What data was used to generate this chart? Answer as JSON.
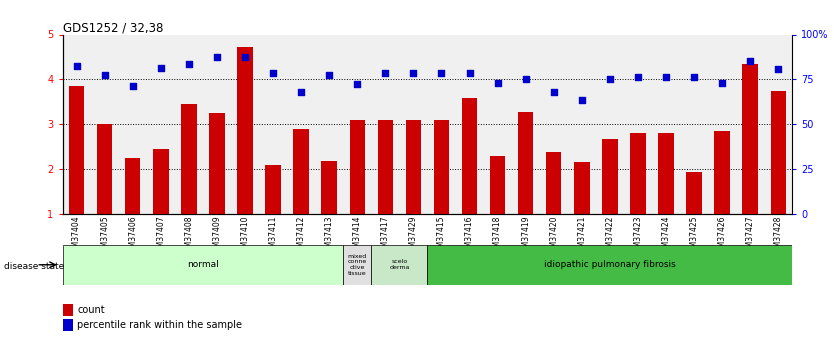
{
  "title": "GDS1252 / 32,38",
  "categories": [
    "GSM37404",
    "GSM37405",
    "GSM37406",
    "GSM37407",
    "GSM37408",
    "GSM37409",
    "GSM37410",
    "GSM37411",
    "GSM37412",
    "GSM37413",
    "GSM37414",
    "GSM37417",
    "GSM37429",
    "GSM37415",
    "GSM37416",
    "GSM37418",
    "GSM37419",
    "GSM37420",
    "GSM37421",
    "GSM37422",
    "GSM37423",
    "GSM37424",
    "GSM37425",
    "GSM37426",
    "GSM37427",
    "GSM37428"
  ],
  "bar_values": [
    3.85,
    3.0,
    2.25,
    2.45,
    3.45,
    3.25,
    4.72,
    2.08,
    2.9,
    2.18,
    3.1,
    3.1,
    3.1,
    3.1,
    3.58,
    2.28,
    3.27,
    2.38,
    2.15,
    2.67,
    2.8,
    2.8,
    1.93,
    2.85,
    4.35,
    3.75
  ],
  "scatter_values": [
    4.3,
    4.1,
    3.85,
    4.25,
    4.35,
    4.5,
    4.5,
    4.15,
    3.72,
    4.1,
    3.9,
    4.15,
    4.15,
    4.15,
    4.15,
    3.92,
    4.0,
    3.72,
    3.55,
    4.0,
    4.05,
    4.05,
    4.05,
    3.92,
    4.42,
    4.22
  ],
  "bar_color": "#CC0000",
  "scatter_color": "#0000CC",
  "ylim": [
    1,
    5
  ],
  "yticks": [
    1,
    2,
    3,
    4,
    5
  ],
  "ytick_labels": [
    "1",
    "2",
    "3",
    "4",
    "5"
  ],
  "y2ticks": [
    0,
    25,
    50,
    75,
    100
  ],
  "y2tick_labels": [
    "0",
    "25",
    "50",
    "75",
    "100%"
  ],
  "hlines": [
    2,
    3,
    4
  ],
  "disease_groups": [
    {
      "label": "normal",
      "start": 0,
      "end": 10,
      "color": "#ccffcc"
    },
    {
      "label": "mixed\nconne\nctive\ntissue",
      "start": 10,
      "end": 11,
      "color": "#e0e0e0"
    },
    {
      "label": "scelo\nderma",
      "start": 11,
      "end": 13,
      "color": "#c8e8c8"
    },
    {
      "label": "idiopathic pulmonary fibrosis",
      "start": 13,
      "end": 26,
      "color": "#44bb44"
    }
  ],
  "disease_state_label": "disease state",
  "legend_items": [
    {
      "label": "count",
      "color": "#CC0000"
    },
    {
      "label": "percentile rank within the sample",
      "color": "#0000CC"
    }
  ],
  "background_color": "#ffffff"
}
